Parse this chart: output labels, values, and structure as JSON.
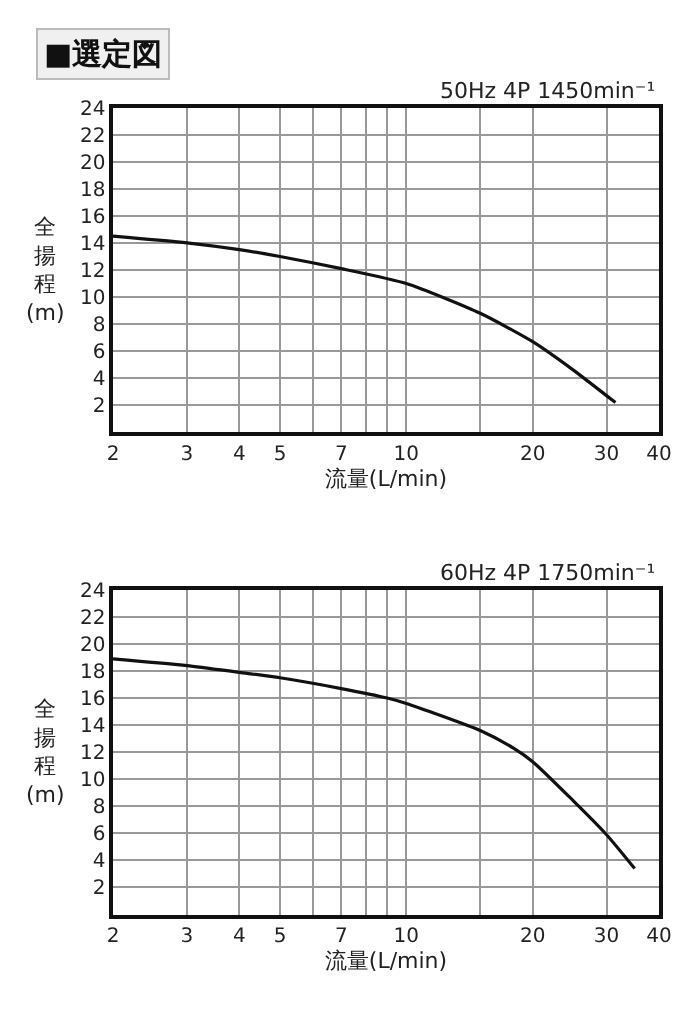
{
  "chart_data": [
    {
      "type": "line",
      "title": "■選定図",
      "subtitle": "50Hz 4P 1450min⁻¹",
      "xlabel": "流量(L/min)",
      "ylabel": "全揚程(m)",
      "log": "x",
      "grid": true,
      "x": [
        2,
        3,
        4,
        5,
        7,
        10,
        15,
        20,
        25,
        31.5
      ],
      "series": [
        {
          "color": "#111111",
          "values": [
            14.5,
            14.0,
            13.5,
            13.0,
            12.1,
            11.0,
            8.8,
            6.7,
            4.6,
            2.2
          ]
        }
      ],
      "xlim": [
        2,
        40
      ],
      "xticks": [
        2,
        3,
        4,
        5,
        {
          "value": 6,
          "label": null
        },
        7,
        {
          "value": 8,
          "label": null
        },
        {
          "value": 9,
          "label": null
        },
        10,
        {
          "value": 15,
          "label": null
        },
        20,
        30,
        40
      ],
      "ylim": [
        0,
        24
      ],
      "yticks": [
        {
          "value": 0,
          "label": null
        },
        2,
        4,
        6,
        8,
        10,
        12,
        14,
        16,
        18,
        20,
        22,
        24
      ]
    },
    {
      "type": "line",
      "subtitle": "60Hz 4P 1750min⁻¹",
      "xlabel": "流量(L/min)",
      "ylabel": "全揚程(m)",
      "log": "x",
      "grid": true,
      "x": [
        2,
        3,
        4,
        5,
        7,
        9,
        10,
        15,
        18,
        20,
        25,
        30,
        35
      ],
      "series": [
        {
          "color": "#111111",
          "values": [
            18.9,
            18.4,
            17.9,
            17.5,
            16.7,
            16.0,
            15.6,
            13.6,
            12.3,
            11.3,
            8.4,
            5.9,
            3.4
          ]
        }
      ],
      "xlim": [
        2,
        40
      ],
      "xticks": [
        2,
        3,
        4,
        5,
        {
          "value": 6,
          "label": null
        },
        7,
        {
          "value": 8,
          "label": null
        },
        {
          "value": 9,
          "label": null
        },
        10,
        {
          "value": 15,
          "label": null
        },
        20,
        30,
        40
      ],
      "ylim": [
        0,
        24
      ],
      "yticks": [
        {
          "value": 0,
          "label": null
        },
        2,
        4,
        6,
        8,
        10,
        12,
        14,
        16,
        18,
        20,
        22,
        24
      ]
    }
  ]
}
